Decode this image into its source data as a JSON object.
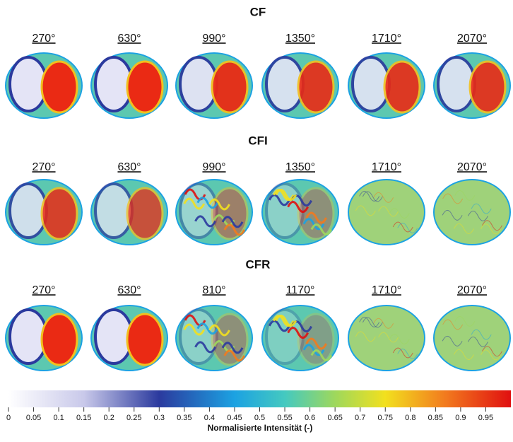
{
  "panels": [
    {
      "title": "CF",
      "labels": [
        "270°",
        "630°",
        "990°",
        "1350°",
        "1710°",
        "2070°"
      ]
    },
    {
      "title": "CFI",
      "labels": [
        "270°",
        "630°",
        "990°",
        "1350°",
        "1710°",
        "2070°"
      ]
    },
    {
      "title": "CFR",
      "labels": [
        "270°",
        "630°",
        "810°",
        "1170°",
        "1710°",
        "2070°"
      ]
    }
  ],
  "colorbar": {
    "label": "Normalisierte Intensität (-)",
    "lim": [
      0,
      1
    ],
    "ticks": [
      0,
      0.05,
      0.1,
      0.15,
      0.2,
      0.25,
      0.3,
      0.35,
      0.4,
      0.45,
      0.5,
      0.55,
      0.6,
      0.65,
      0.7,
      0.75,
      0.8,
      0.85,
      0.9,
      0.95
    ]
  }
}
